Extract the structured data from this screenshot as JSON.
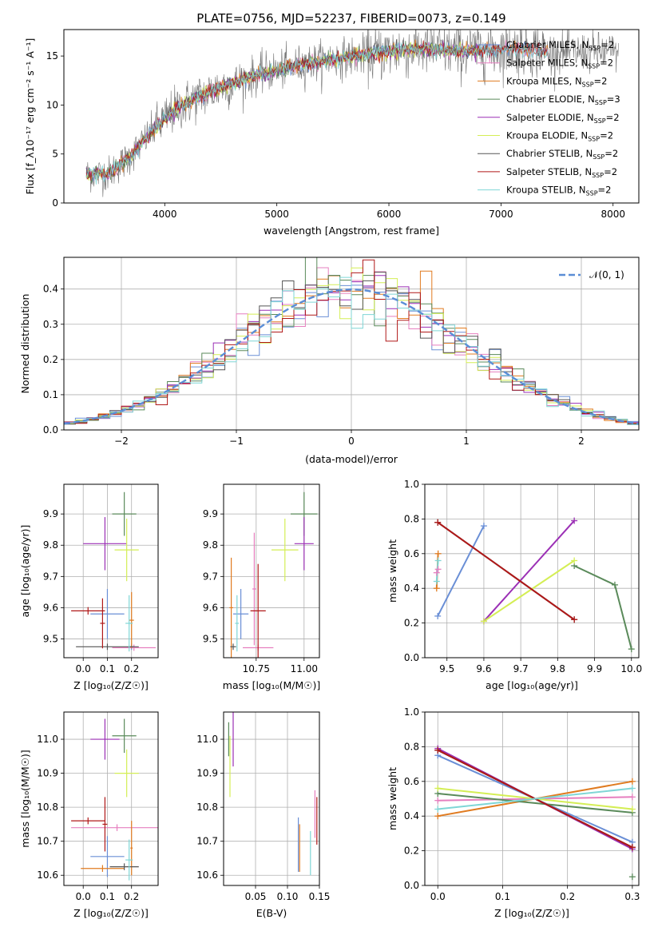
{
  "figure_title": "PLATE=0756, MJD=52237, FIBERID=0073, z=0.149",
  "colors": {
    "Chabrier MILES": "#6a8fd6",
    "Salpeter MILES": "#e67fbf",
    "Kroupa MILES": "#e07b20",
    "Chabrier ELODIE": "#5a8a5a",
    "Salpeter ELODIE": "#9b2fb5",
    "Kroupa ELODIE": "#d4ee55",
    "Chabrier STELIB": "#555555",
    "Salpeter STELIB": "#b01818",
    "Kroupa STELIB": "#7fd6d6",
    "observed": "#777777",
    "normal": "#5b8ed6"
  },
  "chart_data": [
    {
      "id": "spectrum",
      "type": "line",
      "title": "PLATE=0756, MJD=52237, FIBERID=0073, z=0.149",
      "xlabel": "wavelength [Angstrom, rest frame]",
      "ylabel": "Flux [f_λ10⁻¹⁷ erg cm⁻² s⁻¹ A⁻¹]",
      "xlim": [
        3100,
        8230
      ],
      "ylim": [
        0,
        17.7
      ],
      "xticks": [
        "4000",
        "5000",
        "6000",
        "7000",
        "8000"
      ],
      "yticks": [
        "0",
        "5",
        "10",
        "15"
      ],
      "grid": false,
      "legend_position": "top-right",
      "legend": [
        {
          "name": "Chabrier MILES",
          "nssp": "2"
        },
        {
          "name": "Salpeter MILES",
          "nssp": "2"
        },
        {
          "name": "Kroupa MILES",
          "nssp": "2"
        },
        {
          "name": "Chabrier ELODIE",
          "nssp": "3"
        },
        {
          "name": "Salpeter ELODIE",
          "nssp": "2"
        },
        {
          "name": "Kroupa ELODIE",
          "nssp": "2"
        },
        {
          "name": "Chabrier STELIB",
          "nssp": "2"
        },
        {
          "name": "Salpeter STELIB",
          "nssp": "2"
        },
        {
          "name": "Kroupa STELIB",
          "nssp": "2"
        }
      ],
      "nssp_prefix": "N",
      "nssp_sub": "SSP",
      "continuum": {
        "x": [
          3300,
          3500,
          3700,
          3900,
          4100,
          4300,
          4500,
          4700,
          4900,
          5100,
          5300,
          5500,
          5700,
          5900,
          6100,
          6300,
          6500,
          6700,
          6900,
          7100,
          7300,
          7420
        ],
        "y": [
          2.9,
          3.0,
          4.8,
          7.5,
          9.6,
          10.8,
          11.8,
          12.6,
          13.3,
          13.8,
          14.3,
          14.7,
          15.0,
          15.3,
          15.6,
          15.7,
          15.6,
          15.5,
          15.6,
          15.8,
          15.7,
          15.4
        ]
      }
    },
    {
      "id": "residuals",
      "type": "histogram",
      "xlabel": "(data-model)/error",
      "ylabel": "Normed distribution",
      "xlim": [
        -2.5,
        2.5
      ],
      "ylim": [
        0,
        0.49
      ],
      "xticks": [
        "−2",
        "−1",
        "0",
        "1",
        "2"
      ],
      "yticks": [
        "0.0",
        "0.1",
        "0.2",
        "0.3",
        "0.4"
      ],
      "grid": true,
      "legend_position": "top-right",
      "normal_label": "𝒩(0, 1)",
      "bin_width": 0.1
    },
    {
      "id": "age-vs-Z",
      "type": "scatter",
      "xlabel": "Z [log₁₀(Z/Z☉)]",
      "ylabel": "age  [log₁₀(age/yr)]",
      "xlim": [
        -0.08,
        0.31
      ],
      "ylim": [
        9.44,
        9.995
      ],
      "xticks": [
        {
          "v": 0.0,
          "t": "0.0"
        },
        {
          "v": 0.1,
          "t": "0.1"
        },
        {
          "v": 0.2,
          "t": "0.2"
        }
      ],
      "yticks": [
        {
          "v": 9.5,
          "t": "9.5"
        },
        {
          "v": 9.6,
          "t": "9.6"
        },
        {
          "v": 9.7,
          "t": "9.7"
        },
        {
          "v": 9.8,
          "t": "9.8"
        },
        {
          "v": 9.9,
          "t": "9.9"
        }
      ],
      "grid": true,
      "points": [
        {
          "m": "Chabrier MILES",
          "x": 0.1,
          "xe": 0.07,
          "y": 9.58,
          "ye": 0.08
        },
        {
          "m": "Chabrier MILES",
          "x": 0.2,
          "xe": 0.01,
          "y": 9.475,
          "ye": 0.01
        },
        {
          "m": "Salpeter MILES",
          "x": 0.21,
          "xe": 0.09,
          "y": 9.472,
          "ye": 0.01
        },
        {
          "m": "Kroupa MILES",
          "x": 0.2,
          "xe": 0.01,
          "y": 9.56,
          "ye": 0.09
        },
        {
          "m": "Chabrier ELODIE",
          "x": 0.17,
          "xe": 0.05,
          "y": 9.9,
          "ye": 0.07
        },
        {
          "m": "Salpeter ELODIE",
          "x": 0.09,
          "xe": 0.09,
          "y": 9.805,
          "ye": 0.085
        },
        {
          "m": "Kroupa ELODIE",
          "x": 0.18,
          "xe": 0.05,
          "y": 9.785,
          "ye": 0.1
        },
        {
          "m": "Chabrier STELIB",
          "x": 0.1,
          "xe": 0.13,
          "y": 9.475,
          "ye": 0.01
        },
        {
          "m": "Salpeter STELIB",
          "x": 0.02,
          "xe": 0.07,
          "y": 9.59,
          "ye": 0.012
        },
        {
          "m": "Salpeter STELIB",
          "x": 0.08,
          "xe": 0.01,
          "y": 9.55,
          "ye": 0.08
        },
        {
          "m": "Kroupa STELIB",
          "x": 0.19,
          "xe": 0.015,
          "y": 9.55,
          "ye": 0.09
        }
      ]
    },
    {
      "id": "age-vs-mass",
      "type": "scatter",
      "xlabel": "mass [log₁₀(M/M☉)]",
      "ylabel": "",
      "xlim": [
        10.58,
        11.08
      ],
      "ylim": [
        9.44,
        9.995
      ],
      "xticks": [
        {
          "v": 10.75,
          "t": "10.75"
        },
        {
          "v": 11.0,
          "t": "11.00"
        }
      ],
      "yticks": [
        {
          "v": 9.5,
          "t": "9.5"
        },
        {
          "v": 9.6,
          "t": "9.6"
        },
        {
          "v": 9.7,
          "t": "9.7"
        },
        {
          "v": 9.8,
          "t": "9.8"
        },
        {
          "v": 9.9,
          "t": "9.9"
        }
      ],
      "grid": true,
      "points": [
        {
          "m": "Chabrier MILES",
          "x": 10.67,
          "xe": 0.04,
          "y": 9.58,
          "ye": 0.08
        },
        {
          "m": "Salpeter MILES",
          "x": 10.76,
          "xe": 0.08,
          "y": 9.472,
          "ye": 0.01
        },
        {
          "m": "Salpeter MILES",
          "x": 10.74,
          "xe": 0.01,
          "y": 9.66,
          "ye": 0.18
        },
        {
          "m": "Kroupa MILES",
          "x": 10.62,
          "xe": 0.01,
          "y": 9.6,
          "ye": 0.16
        },
        {
          "m": "Chabrier ELODIE",
          "x": 11.0,
          "xe": 0.07,
          "y": 9.9,
          "ye": 0.07
        },
        {
          "m": "Salpeter ELODIE",
          "x": 11.0,
          "xe": 0.05,
          "y": 9.805,
          "ye": 0.085
        },
        {
          "m": "Kroupa ELODIE",
          "x": 10.9,
          "xe": 0.07,
          "y": 9.785,
          "ye": 0.1
        },
        {
          "m": "Chabrier STELIB",
          "x": 10.63,
          "xe": 0.015,
          "y": 9.475,
          "ye": 0.01
        },
        {
          "m": "Salpeter STELIB",
          "x": 10.76,
          "xe": 0.04,
          "y": 9.59,
          "ye": 0.15
        },
        {
          "m": "Kroupa STELIB",
          "x": 10.65,
          "xe": 0.01,
          "y": 9.55,
          "ye": 0.09
        }
      ]
    },
    {
      "id": "weight-vs-age",
      "type": "line",
      "xlabel": "age  [log₁₀(age/yr)]",
      "ylabel": "mass weight",
      "xlim": [
        9.44,
        10.02
      ],
      "ylim": [
        0,
        1
      ],
      "xticks": [
        {
          "v": 9.5,
          "t": "9.5"
        },
        {
          "v": 9.6,
          "t": "9.6"
        },
        {
          "v": 9.7,
          "t": "9.7"
        },
        {
          "v": 9.8,
          "t": "9.8"
        },
        {
          "v": 9.9,
          "t": "9.9"
        },
        {
          "v": 10.0,
          "t": "10.0"
        }
      ],
      "yticks": [
        {
          "v": 0,
          "t": "0.0"
        },
        {
          "v": 0.2,
          "t": "0.2"
        },
        {
          "v": 0.4,
          "t": "0.4"
        },
        {
          "v": 0.6,
          "t": "0.6"
        },
        {
          "v": 0.8,
          "t": "0.8"
        },
        {
          "v": 1.0,
          "t": "1.0"
        }
      ],
      "grid": true,
      "series": [
        {
          "m": "Chabrier MILES",
          "x": [
            9.475,
            9.6
          ],
          "y": [
            0.24,
            0.76
          ]
        },
        {
          "m": "Salpeter MILES",
          "x": [
            9.472,
            9.476
          ],
          "y": [
            0.49,
            0.51
          ]
        },
        {
          "m": "Kroupa MILES",
          "x": [
            9.472,
            9.476
          ],
          "y": [
            0.4,
            0.6
          ]
        },
        {
          "m": "Chabrier ELODIE",
          "x": [
            9.845,
            9.955,
            10.0
          ],
          "y": [
            0.53,
            0.42,
            0.05
          ]
        },
        {
          "m": "Salpeter ELODIE",
          "x": [
            9.6,
            9.845
          ],
          "y": [
            0.21,
            0.79
          ]
        },
        {
          "m": "Kroupa ELODIE",
          "x": [
            9.6,
            9.845
          ],
          "y": [
            0.21,
            0.56
          ]
        },
        {
          "m": "Chabrier STELIB",
          "x": [
            9.475,
            9.845
          ],
          "y": [
            0.78,
            0.22
          ]
        },
        {
          "m": "Salpeter STELIB",
          "x": [
            9.475,
            9.845
          ],
          "y": [
            0.78,
            0.22
          ]
        },
        {
          "m": "Kroupa STELIB",
          "x": [
            9.472,
            9.476
          ],
          "y": [
            0.44,
            0.56
          ]
        }
      ]
    },
    {
      "id": "mass-vs-Z",
      "type": "scatter",
      "xlabel": "Z [log₁₀(Z/Z☉)]",
      "ylabel": "mass [log₁₀(M/M☉)]",
      "xlim": [
        -0.08,
        0.31
      ],
      "ylim": [
        10.57,
        11.08
      ],
      "xticks": [
        {
          "v": 0.0,
          "t": "0.0"
        },
        {
          "v": 0.1,
          "t": "0.1"
        },
        {
          "v": 0.2,
          "t": "0.2"
        }
      ],
      "yticks": [
        {
          "v": 10.6,
          "t": "10.6"
        },
        {
          "v": 10.7,
          "t": "10.7"
        },
        {
          "v": 10.8,
          "t": "10.8"
        },
        {
          "v": 10.9,
          "t": "10.9"
        },
        {
          "v": 11.0,
          "t": "11.0"
        }
      ],
      "grid": true,
      "points": [
        {
          "m": "Chabrier MILES",
          "x": 0.1,
          "xe": 0.07,
          "y": 10.655,
          "ye": 0.06
        },
        {
          "m": "Salpeter MILES",
          "x": 0.14,
          "xe": 0.19,
          "y": 10.74,
          "ye": 0.01
        },
        {
          "m": "Kroupa MILES",
          "x": 0.2,
          "xe": 0.005,
          "y": 10.68,
          "ye": 0.08
        },
        {
          "m": "Kroupa MILES",
          "x": 0.08,
          "xe": 0.09,
          "y": 10.62,
          "ye": 0.01
        },
        {
          "m": "Chabrier ELODIE",
          "x": 0.17,
          "xe": 0.05,
          "y": 11.01,
          "ye": 0.05
        },
        {
          "m": "Salpeter ELODIE",
          "x": 0.09,
          "xe": 0.06,
          "y": 11.0,
          "ye": 0.06
        },
        {
          "m": "Kroupa ELODIE",
          "x": 0.18,
          "xe": 0.05,
          "y": 10.9,
          "ye": 0.07
        },
        {
          "m": "Chabrier STELIB",
          "x": 0.17,
          "xe": 0.06,
          "y": 10.625,
          "ye": 0.01
        },
        {
          "m": "Salpeter STELIB",
          "x": 0.02,
          "xe": 0.07,
          "y": 10.76,
          "ye": 0.01
        },
        {
          "m": "Salpeter STELIB",
          "x": 0.09,
          "xe": 0.01,
          "y": 10.75,
          "ye": 0.08
        },
        {
          "m": "Kroupa STELIB",
          "x": 0.19,
          "xe": 0.015,
          "y": 10.645,
          "ye": 0.06
        }
      ]
    },
    {
      "id": "mass-vs-ebv",
      "type": "scatter",
      "xlabel": "E(B-V)",
      "ylabel": "",
      "xlim": [
        0.0,
        0.15
      ],
      "ylim": [
        10.57,
        11.08
      ],
      "xticks": [
        {
          "v": 0.05,
          "t": "0.05"
        },
        {
          "v": 0.1,
          "t": "0.10"
        },
        {
          "v": 0.15,
          "t": "0.15"
        }
      ],
      "yticks": [
        {
          "v": 10.6,
          "t": "10.6"
        },
        {
          "v": 10.7,
          "t": "10.7"
        },
        {
          "v": 10.8,
          "t": "10.8"
        },
        {
          "v": 10.9,
          "t": "10.9"
        },
        {
          "v": 11.0,
          "t": "11.0"
        }
      ],
      "grid": true,
      "points": [
        {
          "m": "Chabrier MILES",
          "x": 0.117,
          "xe": 0.0,
          "y": 10.69,
          "ye": 0.08
        },
        {
          "m": "Kroupa MILES",
          "x": 0.119,
          "xe": 0.0,
          "y": 10.68,
          "ye": 0.07
        },
        {
          "m": "Salpeter MILES",
          "x": 0.143,
          "xe": 0.0,
          "y": 10.78,
          "ye": 0.07
        },
        {
          "m": "Salpeter STELIB",
          "x": 0.146,
          "xe": 0.0,
          "y": 10.76,
          "ye": 0.07
        },
        {
          "m": "Kroupa STELIB",
          "x": 0.136,
          "xe": 0.0,
          "y": 10.665,
          "ye": 0.065
        },
        {
          "m": "Kroupa ELODIE",
          "x": 0.01,
          "xe": 0.0,
          "y": 10.92,
          "ye": 0.09
        },
        {
          "m": "Salpeter ELODIE",
          "x": 0.015,
          "xe": 0.0,
          "y": 11.0,
          "ye": 0.08
        },
        {
          "m": "Chabrier ELODIE",
          "x": 0.008,
          "xe": 0.0,
          "y": 11.0,
          "ye": 0.05
        }
      ]
    },
    {
      "id": "weight-vs-Z",
      "type": "line",
      "xlabel": "Z [log₁₀(Z/Z☉)]",
      "ylabel": "mass weight",
      "xlim": [
        -0.02,
        0.31
      ],
      "ylim": [
        0,
        1
      ],
      "xticks": [
        {
          "v": 0.0,
          "t": "0.0"
        },
        {
          "v": 0.1,
          "t": "0.1"
        },
        {
          "v": 0.2,
          "t": "0.2"
        },
        {
          "v": 0.3,
          "t": "0.3"
        }
      ],
      "yticks": [
        {
          "v": 0,
          "t": "0.0"
        },
        {
          "v": 0.2,
          "t": "0.2"
        },
        {
          "v": 0.4,
          "t": "0.4"
        },
        {
          "v": 0.6,
          "t": "0.6"
        },
        {
          "v": 0.8,
          "t": "0.8"
        },
        {
          "v": 1.0,
          "t": "1.0"
        }
      ],
      "grid": true,
      "series": [
        {
          "m": "Chabrier MILES",
          "x": [
            0.0,
            0.3
          ],
          "y": [
            0.75,
            0.25
          ]
        },
        {
          "m": "Salpeter MILES",
          "x": [
            0.0,
            0.3
          ],
          "y": [
            0.49,
            0.51
          ]
        },
        {
          "m": "Kroupa MILES",
          "x": [
            0.0,
            0.3
          ],
          "y": [
            0.4,
            0.6
          ]
        },
        {
          "m": "Chabrier ELODIE",
          "x": [
            0.0,
            0.3
          ],
          "y": [
            0.53,
            0.42
          ]
        },
        {
          "m": "Salpeter ELODIE",
          "x": [
            0.0,
            0.3
          ],
          "y": [
            0.79,
            0.21
          ]
        },
        {
          "m": "Kroupa ELODIE",
          "x": [
            0.0,
            0.3
          ],
          "y": [
            0.56,
            0.44
          ]
        },
        {
          "m": "Chabrier STELIB",
          "x": [
            0.0,
            0.3
          ],
          "y": [
            0.78,
            0.22
          ]
        },
        {
          "m": "Salpeter STELIB",
          "x": [
            0.0,
            0.3
          ],
          "y": [
            0.78,
            0.22
          ]
        },
        {
          "m": "Kroupa STELIB",
          "x": [
            0.0,
            0.3
          ],
          "y": [
            0.44,
            0.56
          ]
        }
      ],
      "extra_point": {
        "m": "Chabrier ELODIE",
        "x": 0.3,
        "y": 0.05
      }
    }
  ]
}
